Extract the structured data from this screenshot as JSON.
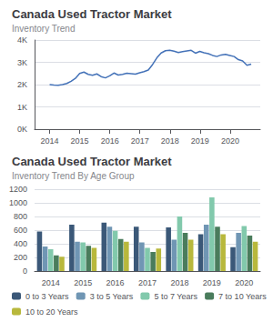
{
  "chart_data": [
    {
      "type": "line",
      "title": "Canada Used Tractor Market",
      "subtitle": "Inventory Trend",
      "x": [
        2014,
        2014.1426,
        2014.2851,
        2014.4277,
        2014.5702,
        2014.7128,
        2014.8553,
        2014.9979,
        2015.1404,
        2015.283,
        2015.4255,
        2015.5681,
        2015.7106,
        2015.8532,
        2015.9957,
        2016.1383,
        2016.2809,
        2016.4234,
        2016.566,
        2016.7085,
        2016.8511,
        2016.9936,
        2017.1362,
        2017.2787,
        2017.4213,
        2017.5638,
        2017.7064,
        2017.8489,
        2017.9915,
        2018.134,
        2018.2766,
        2018.4191,
        2018.5617,
        2018.7043,
        2018.8468,
        2018.9894,
        2019.1319,
        2019.2745,
        2019.417,
        2019.5596,
        2019.7021,
        2019.8447,
        2019.9872,
        2020.1298,
        2020.2723,
        2020.4149,
        2020.5574,
        2020.7
      ],
      "values": [
        2000,
        1980,
        1970,
        2000,
        2050,
        2150,
        2280,
        2500,
        2560,
        2460,
        2420,
        2480,
        2360,
        2300,
        2390,
        2520,
        2430,
        2460,
        2510,
        2490,
        2470,
        2530,
        2580,
        2650,
        2900,
        3200,
        3420,
        3520,
        3540,
        3500,
        3440,
        3480,
        3510,
        3540,
        3410,
        3490,
        3430,
        3390,
        3310,
        3260,
        3330,
        3360,
        3310,
        3260,
        3120,
        3060,
        2870,
        2920
      ],
      "color": "#4472b8",
      "xlim": [
        2013.5,
        2021.0
      ],
      "xticks": [
        2014,
        2015,
        2016,
        2017,
        2018,
        2019,
        2020
      ],
      "ylim": [
        0,
        4000
      ],
      "yticks": [
        {
          "value": 0,
          "label": "0K"
        },
        {
          "value": 1000,
          "label": "1K"
        },
        {
          "value": 2000,
          "label": "2K"
        },
        {
          "value": 3000,
          "label": "3K"
        },
        {
          "value": 4000,
          "label": "4K"
        }
      ],
      "grid": true
    },
    {
      "type": "bar",
      "title": "Canada Used Tractor Market",
      "subtitle": "Inventory Trend By Age Group",
      "categories": [
        "2014",
        "2015",
        "2016",
        "2017",
        "2018",
        "2019",
        "2020"
      ],
      "series": [
        {
          "name": "0 to 3 Years",
          "color": "#3b5878",
          "values": [
            580,
            680,
            710,
            650,
            640,
            540,
            350
          ]
        },
        {
          "name": "3 to 5 Years",
          "color": "#7096b4",
          "values": [
            360,
            430,
            650,
            420,
            460,
            680,
            560
          ]
        },
        {
          "name": "5 to 7 Years",
          "color": "#82c9ac",
          "values": [
            320,
            420,
            590,
            340,
            800,
            1080,
            660
          ]
        },
        {
          "name": "7 to 10 Years",
          "color": "#4a7c5c",
          "values": [
            230,
            370,
            470,
            280,
            560,
            650,
            520
          ]
        },
        {
          "name": "10 to 20 Years",
          "color": "#b8b83c",
          "values": [
            210,
            340,
            430,
            330,
            460,
            540,
            430
          ]
        }
      ],
      "ylim": [
        0,
        1200
      ],
      "yticks": [
        0,
        200,
        400,
        600,
        800,
        1000,
        1200
      ],
      "grid": true,
      "legend": "lower left"
    }
  ]
}
